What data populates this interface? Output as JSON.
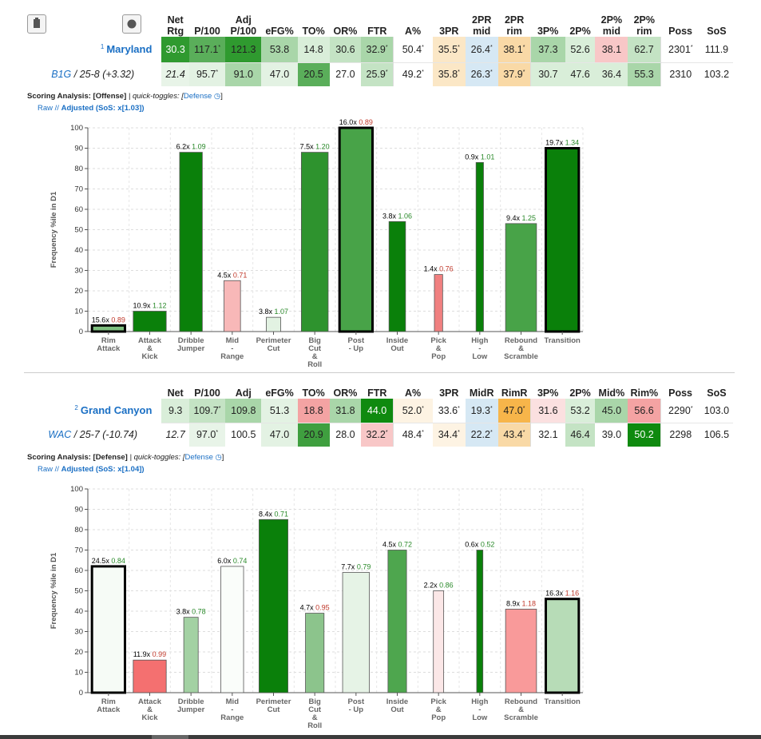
{
  "team1": {
    "header": [
      "Net\nRtg",
      "P/100",
      "Adj\nP/100",
      "eFG%",
      "TO%",
      "OR%",
      "FTR",
      "A%",
      "3PR",
      "2PR\nmid",
      "2PR\nrim",
      "3P%",
      "2P%",
      "2P%\nmid",
      "2P%\nrim",
      "Poss",
      "SoS"
    ],
    "name": "Maryland",
    "seed": "1",
    "conf": "B1G",
    "record": " / 25-8 (+3.32)",
    "row1": [
      "30.3",
      "117.1*",
      "121.3",
      "53.8",
      "14.8",
      "30.6",
      "32.9*",
      "50.4*",
      "35.5*",
      "26.4*",
      "38.1*",
      "37.3",
      "52.6",
      "38.1",
      "62.7",
      "2301*",
      "111.9"
    ],
    "row1_colors": [
      "#2f9a2f",
      "#5aae5a",
      "#2f9a2f",
      "#a9d6a9",
      "#d9eed9",
      "#c4e3c4",
      "#a9d6a9",
      "#ffffff",
      "#fbe7c6",
      "#d6e8f4",
      "#f9d9a6",
      "#a9d6a9",
      "#d9eed9",
      "#f8c7c7",
      "#c4e3c4",
      "#ffffff",
      "#ffffff"
    ],
    "row2": [
      "21.4",
      "95.7*",
      "91.0",
      "47.0",
      "20.5",
      "27.0",
      "25.9*",
      "49.2*",
      "35.8*",
      "26.3*",
      "37.9*",
      "30.7",
      "47.6",
      "36.4",
      "55.3",
      "2310",
      "103.2"
    ],
    "row2_colors": [
      "#e8f4e8",
      "#e3f2e3",
      "#a9d6a9",
      "#e3f2e3",
      "#5aae5a",
      "#ffffff",
      "#c4e3c4",
      "#ffffff",
      "#fbe7c6",
      "#d6e8f4",
      "#f9d9a6",
      "#d9eed9",
      "#d9eed9",
      "#d9eed9",
      "#a9d6a9",
      "#ffffff",
      "#ffffff"
    ]
  },
  "team2": {
    "header": [
      "Net",
      "P/100",
      "Adj",
      "eFG%",
      "TO%",
      "OR%",
      "FTR",
      "A%",
      "3PR",
      "MidR",
      "RimR",
      "3P%",
      "2P%",
      "Mid%",
      "Rim%",
      "Poss",
      "SoS"
    ],
    "name": "Grand Canyon",
    "seed": "2",
    "conf": "WAC",
    "record": " / 25-7 (-10.74)",
    "row1": [
      "9.3",
      "109.7*",
      "109.8",
      "51.3",
      "18.8",
      "31.8",
      "44.0",
      "52.0*",
      "33.6*",
      "19.3*",
      "47.0*",
      "31.6",
      "53.2",
      "45.0",
      "56.6",
      "2290*",
      "103.0"
    ],
    "row1_colors": [
      "#d9eed9",
      "#c4e3c4",
      "#a9d6a9",
      "#e3f2e3",
      "#f4a3a3",
      "#a9d6a9",
      "#0f8a0f",
      "#fdf3e3",
      "#ffffff",
      "#d6e8f4",
      "#f7b54a",
      "#fbe0e0",
      "#d9eed9",
      "#a9d6a9",
      "#f4a3a3",
      "#ffffff",
      "#ffffff"
    ],
    "row2": [
      "12.7",
      "97.0*",
      "100.5",
      "47.0",
      "20.9",
      "28.0",
      "32.2*",
      "48.4*",
      "34.4*",
      "22.2*",
      "43.4*",
      "32.1",
      "46.4",
      "39.0",
      "50.2",
      "2298",
      "106.5"
    ],
    "row2_colors": [
      "#ffffff",
      "#e8f4e8",
      "#ffffff",
      "#e3f2e3",
      "#3f9f3f",
      "#ffffff",
      "#f8c7c7",
      "#ffffff",
      "#fdf3e3",
      "#d6e8f4",
      "#f9d9a6",
      "#ffffff",
      "#c4e3c4",
      "#ffffff",
      "#0f8a0f",
      "#ffffff",
      "#ffffff"
    ]
  },
  "analysis1": {
    "title": "Scoring Analysis: [Offense]",
    "toggles_label": " | quick-toggles: [",
    "toggle_link": "Defense",
    "raw": "Raw",
    "adjusted": "Adjusted (SoS: x[1.03])"
  },
  "analysis2": {
    "title": "Scoring Analysis: [Defense]",
    "toggles_label": " | quick-toggles: [",
    "toggle_link": "Defense",
    "raw": "Raw",
    "adjusted": "Adjusted (SoS: x[1.04])"
  },
  "chart_data": [
    {
      "type": "bar",
      "ylabel": "Frequency %ile in D1",
      "ylim": [
        0,
        100
      ],
      "yticks": [
        0,
        10,
        20,
        30,
        40,
        50,
        60,
        70,
        80,
        90,
        100
      ],
      "grid": true,
      "categories": [
        "Rim\nAttack",
        "Attack\n&\nKick",
        "Dribble\nJumper",
        "Mid\n-\nRange",
        "Perimeter\nCut",
        "Big\nCut\n&\nRoll",
        "Post\n- Up",
        "Inside\nOut",
        "Pick\n&\nPop",
        "High\n-\nLow",
        "Rebound\n&\nScramble",
        "Transition"
      ],
      "values": [
        3,
        10,
        88,
        25,
        7,
        88,
        100,
        54,
        28,
        83,
        53,
        90
      ],
      "freq_labels": [
        "15.6x",
        "10.9x",
        "6.2x",
        "4.5x",
        "3.8x",
        "7.5x",
        "16.0x",
        "3.8x",
        "1.4x",
        "0.9x",
        "9.4x",
        "19.7x"
      ],
      "eff_values": [
        "0.89",
        "1.12",
        "1.09",
        "0.71",
        "1.07",
        "1.20",
        "0.89",
        "1.06",
        "0.76",
        "1.01",
        "1.25",
        "1.34"
      ],
      "eff_colors": [
        "#c0392b",
        "#2a8a2a",
        "#2a8a2a",
        "#c0392b",
        "#2a8a2a",
        "#2a8a2a",
        "#c0392b",
        "#2a8a2a",
        "#c0392b",
        "#2a8a2a",
        "#2a8a2a",
        "#2a8a2a"
      ],
      "bar_colors": [
        "#7fbf7f",
        "#0a800a",
        "#0a800a",
        "#f8b8b8",
        "#e2f2e2",
        "#2e932e",
        "#48a348",
        "#0a800a",
        "#f08080",
        "#0a800a",
        "#48a348",
        "#0a800a"
      ],
      "bar_widths": [
        0.8,
        0.8,
        0.55,
        0.4,
        0.35,
        0.65,
        0.8,
        0.4,
        0.2,
        0.18,
        0.75,
        0.8
      ],
      "bold_border": [
        true,
        false,
        false,
        false,
        false,
        false,
        true,
        false,
        false,
        false,
        false,
        true
      ]
    },
    {
      "type": "bar",
      "ylabel": "Frequency %ile in D1",
      "ylim": [
        0,
        100
      ],
      "yticks": [
        0,
        10,
        20,
        30,
        40,
        50,
        60,
        70,
        80,
        90,
        100
      ],
      "grid": true,
      "categories": [
        "Rim\nAttack",
        "Attack\n&\nKick",
        "Dribble\nJumper",
        "Mid\n-\nRange",
        "Perimeter\nCut",
        "Big\nCut\n&\nRoll",
        "Post\n- Up",
        "Inside\nOut",
        "Pick\n&\nPop",
        "High\n-\nLow",
        "Rebound\n&\nScramble",
        "Transition"
      ],
      "values": [
        62,
        16,
        37,
        62,
        85,
        39,
        59,
        70,
        50,
        70,
        41,
        46
      ],
      "freq_labels": [
        "24.5x",
        "11.9x",
        "3.8x",
        "6.0x",
        "8.4x",
        "4.7x",
        "7.7x",
        "4.5x",
        "2.2x",
        "0.6x",
        "8.9x",
        "16.3x"
      ],
      "eff_values": [
        "0.84",
        "0.99",
        "0.78",
        "0.74",
        "0.71",
        "0.95",
        "0.79",
        "0.72",
        "0.86",
        "0.52",
        "1.18",
        "1.16"
      ],
      "eff_colors": [
        "#2a8a2a",
        "#c0392b",
        "#2a8a2a",
        "#2a8a2a",
        "#2a8a2a",
        "#c0392b",
        "#2a8a2a",
        "#2a8a2a",
        "#2a8a2a",
        "#2a8a2a",
        "#c0392b",
        "#c0392b"
      ],
      "bar_colors": [
        "#f6fbf6",
        "#f47070",
        "#a3d1a3",
        "#fafdfa",
        "#0a800a",
        "#8cc48c",
        "#e6f3e6",
        "#4ea64e",
        "#fbe7e7",
        "#0a800a",
        "#f99a9a",
        "#b7dcb7"
      ],
      "bar_widths": [
        0.8,
        0.8,
        0.35,
        0.55,
        0.7,
        0.45,
        0.65,
        0.45,
        0.25,
        0.15,
        0.75,
        0.8
      ],
      "bold_border": [
        true,
        false,
        false,
        false,
        false,
        false,
        false,
        false,
        false,
        false,
        false,
        true
      ]
    }
  ]
}
